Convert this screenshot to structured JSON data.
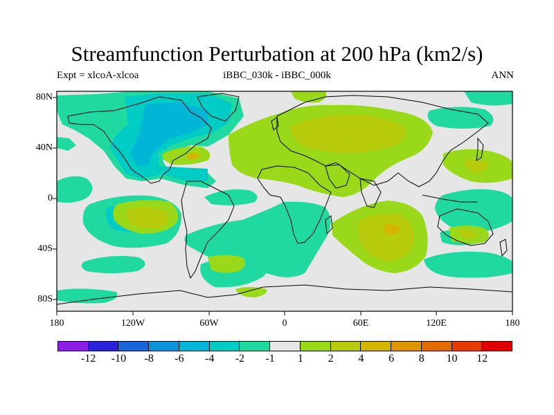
{
  "title": "Streamfunction Perturbation at 200 hPa (km2/s)",
  "subtitle_left": "Expt = xlcoA-xlcoa",
  "subtitle_center": "iBBC_030k - iBBC_000k",
  "subtitle_right": "ANN",
  "y_ticks": [
    "80N",
    "40N",
    "0",
    "40S",
    "80S"
  ],
  "x_ticks": [
    "180",
    "120W",
    "60W",
    "0",
    "60E",
    "120E",
    "180"
  ],
  "colorbar": {
    "colors": [
      "#8b1fe6",
      "#2a21d9",
      "#1a66d9",
      "#0d93d9",
      "#00b5d6",
      "#00ccc6",
      "#1fd9a0",
      "#e6e6e6",
      "#99d91a",
      "#b8cc0d",
      "#d4b500",
      "#db9600",
      "#e06c00",
      "#e33b00",
      "#e00000"
    ],
    "labels": [
      "-12",
      "-10",
      "-8",
      "-6",
      "-4",
      "-2",
      "-1",
      "1",
      "2",
      "4",
      "6",
      "8",
      "10",
      "12"
    ]
  },
  "colors": {
    "background": "#e6e6e6",
    "neg1": "#1fd9a0",
    "neg2": "#00ccc6",
    "neg4": "#00b5d6",
    "pos1": "#99d91a",
    "pos2": "#b8cc0d",
    "pos4": "#d4b500"
  }
}
